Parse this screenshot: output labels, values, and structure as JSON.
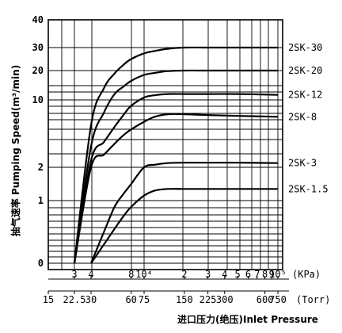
{
  "chart_data": {
    "type": "line",
    "ylabel": "抽气速率 Pumping Speed(m³/min)",
    "xlabel": "进口压力(绝压)Inlet Pressure",
    "y_ticks": [
      "0",
      "1",
      "2",
      "10",
      "20",
      "30",
      "40"
    ],
    "kpa_unit": "(KPa)",
    "torr_unit": "(Torr)",
    "kpa_ticks": [
      {
        "p": 3,
        "label": "3"
      },
      {
        "p": 4,
        "label": "4"
      },
      {
        "p": 8,
        "label": "8"
      },
      {
        "p": 10,
        "label": "10⁴"
      },
      {
        "p": 20,
        "label": "2"
      },
      {
        "p": 30,
        "label": "3"
      },
      {
        "p": 40,
        "label": "4"
      },
      {
        "p": 50,
        "label": "5"
      },
      {
        "p": 60,
        "label": "6"
      },
      {
        "p": 70,
        "label": "7"
      },
      {
        "p": 80,
        "label": "8"
      },
      {
        "p": 90,
        "label": "9"
      },
      {
        "p": 100,
        "label": "10⁵"
      }
    ],
    "torr_ticks": [
      {
        "p": 2,
        "label": "15"
      },
      {
        "p": 3,
        "label": "22.5"
      },
      {
        "p": 4,
        "label": "30"
      },
      {
        "p": 8,
        "label": "60"
      },
      {
        "p": 10,
        "label": "75"
      },
      {
        "p": 20,
        "label": "150"
      },
      {
        "p": 30,
        "label": "225"
      },
      {
        "p": 40,
        "label": "300"
      },
      {
        "p": 80,
        "label": "600"
      },
      {
        "p": 100,
        "label": "750"
      }
    ],
    "series": [
      {
        "name": "2SK-30",
        "points": [
          [
            3,
            0
          ],
          [
            4,
            7
          ],
          [
            5,
            14
          ],
          [
            6,
            19
          ],
          [
            7,
            22.5
          ],
          [
            8,
            25
          ],
          [
            10,
            27.5
          ],
          [
            12,
            28.5
          ],
          [
            15,
            29.5
          ],
          [
            20,
            30
          ],
          [
            30,
            30
          ],
          [
            50,
            30
          ],
          [
            100,
            30
          ]
        ]
      },
      {
        "name": "2SK-20",
        "points": [
          [
            3,
            0
          ],
          [
            4,
            4.5
          ],
          [
            5,
            8.5
          ],
          [
            6,
            12
          ],
          [
            7,
            14.5
          ],
          [
            8,
            16.5
          ],
          [
            10,
            18.5
          ],
          [
            12,
            19.2
          ],
          [
            15,
            19.8
          ],
          [
            20,
            20
          ],
          [
            30,
            20
          ],
          [
            50,
            20
          ],
          [
            100,
            20
          ]
        ]
      },
      {
        "name": "2SK-12",
        "points": [
          [
            3,
            0
          ],
          [
            4,
            2.8
          ],
          [
            5,
            5
          ],
          [
            6,
            6.8
          ],
          [
            7,
            8.2
          ],
          [
            8,
            9.3
          ],
          [
            10,
            10.8
          ],
          [
            12,
            11.6
          ],
          [
            15,
            12
          ],
          [
            20,
            12
          ],
          [
            30,
            12
          ],
          [
            50,
            12
          ],
          [
            70,
            11.9
          ],
          [
            100,
            11.7
          ]
        ]
      },
      {
        "name": "2SK-8",
        "points": [
          [
            3,
            0
          ],
          [
            4,
            2
          ],
          [
            5,
            3.5
          ],
          [
            6,
            4.8
          ],
          [
            7,
            5.8
          ],
          [
            8,
            6.5
          ],
          [
            10,
            7.4
          ],
          [
            12,
            8
          ],
          [
            15,
            8.3
          ],
          [
            20,
            8.3
          ],
          [
            30,
            8.2
          ],
          [
            50,
            8.1
          ],
          [
            100,
            8
          ]
        ]
      },
      {
        "name": "2SK-3",
        "points": [
          [
            4,
            0
          ],
          [
            5,
            0.5
          ],
          [
            6,
            0.9
          ],
          [
            7,
            1.2
          ],
          [
            8,
            1.5
          ],
          [
            10,
            2
          ],
          [
            12,
            2.3
          ],
          [
            15,
            2.5
          ],
          [
            20,
            2.55
          ],
          [
            30,
            2.55
          ],
          [
            50,
            2.55
          ],
          [
            100,
            2.5
          ]
        ]
      },
      {
        "name": "2SK-1.5",
        "points": [
          [
            4,
            0
          ],
          [
            5,
            0.3
          ],
          [
            6,
            0.55
          ],
          [
            7,
            0.75
          ],
          [
            8,
            0.9
          ],
          [
            10,
            1.15
          ],
          [
            12,
            1.3
          ],
          [
            15,
            1.35
          ],
          [
            20,
            1.35
          ],
          [
            30,
            1.35
          ],
          [
            50,
            1.35
          ],
          [
            100,
            1.35
          ]
        ]
      }
    ]
  }
}
